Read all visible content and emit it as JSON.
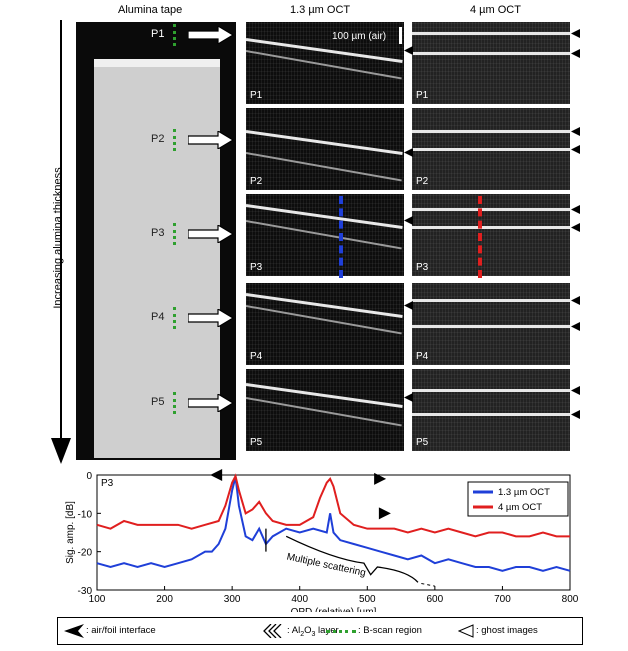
{
  "headers": {
    "tape": "Alumina tape",
    "oct13": "1.3 µm OCT",
    "oct4": "4 µm OCT"
  },
  "thickness_label": "Increasing alumina thickness",
  "positions": [
    "P1",
    "P2",
    "P3",
    "P4",
    "P5"
  ],
  "scale_bar": "100 µm (air)",
  "chart_data": {
    "type": "line",
    "panel_label": "P3",
    "xlabel": "OPD (relative) [µm]",
    "ylabel": "Sig. amp. [dB]",
    "xlim": [
      100,
      800
    ],
    "ylim": [
      -30,
      0
    ],
    "xticks": [
      "100",
      "200",
      "300",
      "400",
      "500",
      "600",
      "700",
      "800"
    ],
    "yticks": [
      "0",
      "-10",
      "-20",
      "-30"
    ],
    "annotation": "Multiple scattering",
    "series": [
      {
        "name": "1.3 µm OCT",
        "color": "#1f3fd8",
        "x": [
          100,
          120,
          140,
          160,
          180,
          200,
          220,
          240,
          260,
          270,
          280,
          290,
          300,
          305,
          310,
          320,
          330,
          340,
          350,
          360,
          380,
          400,
          420,
          440,
          445,
          450,
          460,
          480,
          500,
          520,
          540,
          560,
          580,
          600,
          620,
          640,
          660,
          680,
          700,
          720,
          740,
          760,
          780,
          800
        ],
        "y": [
          -23,
          -24,
          -23,
          -24,
          -23,
          -24,
          -23,
          -22,
          -20,
          -20,
          -18,
          -14,
          -4,
          -0.5,
          -8,
          -16,
          -17,
          -14,
          -18,
          -16,
          -14,
          -15,
          -14,
          -15,
          -10,
          -15,
          -17,
          -18,
          -19,
          -20,
          -21,
          -22,
          -21,
          -23,
          -22,
          -23,
          -24,
          -24,
          -25,
          -24,
          -24,
          -25,
          -24,
          -25
        ]
      },
      {
        "name": "4 µm OCT",
        "color": "#e01f1f",
        "x": [
          100,
          120,
          140,
          160,
          180,
          200,
          220,
          240,
          260,
          280,
          290,
          300,
          305,
          310,
          320,
          330,
          340,
          350,
          360,
          380,
          400,
          420,
          430,
          440,
          445,
          450,
          460,
          480,
          500,
          520,
          540,
          560,
          580,
          600,
          620,
          640,
          660,
          680,
          700,
          720,
          740,
          760,
          780,
          800
        ],
        "y": [
          -13,
          -14,
          -12,
          -13,
          -13,
          -13,
          -13,
          -14,
          -13,
          -12,
          -8,
          -2,
          -0.3,
          -4,
          -10,
          -9,
          -7,
          -10,
          -12,
          -13,
          -13,
          -11,
          -6,
          -2,
          -1,
          -3,
          -10,
          -13,
          -14,
          -14,
          -14,
          -15,
          -14,
          -15,
          -14,
          -15,
          -16,
          -15,
          -15,
          -16,
          -16,
          -15,
          -16,
          -16
        ]
      }
    ]
  },
  "legend": {
    "air_foil": ": air/foil interface",
    "al2o3_pre": ": Al",
    "al2o3_sub": "2",
    "al2o3_mid": "O",
    "al2o3_sub2": "3",
    "al2o3_post": " layer",
    "bscan": ": B-scan region",
    "ghost": ": ghost images"
  }
}
